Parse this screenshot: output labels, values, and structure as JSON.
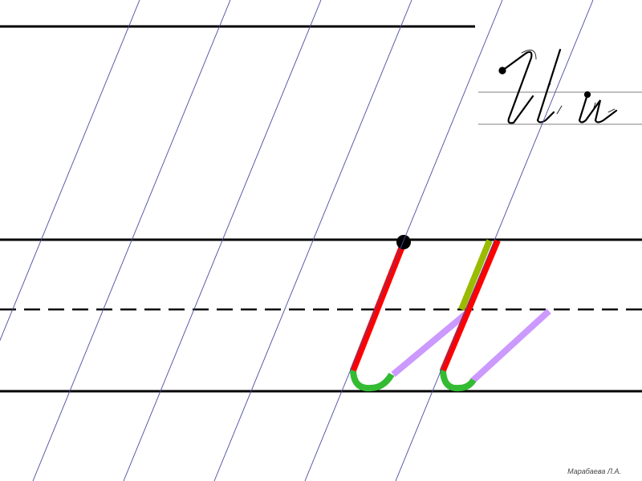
{
  "author": "Марабаева Л.А.",
  "sample_letters": "И и",
  "colors": {
    "ruling": "#000000",
    "slant_lines": "#4b4ba0",
    "main_stroke": "#ff0000",
    "hook_stroke": "#33bb33",
    "connecting_stroke": "#cc99ff",
    "overlap_stroke": "#99bb00",
    "start_dot": "#000000"
  },
  "icons": [
    "start-point-dot",
    "direction-arrows"
  ]
}
